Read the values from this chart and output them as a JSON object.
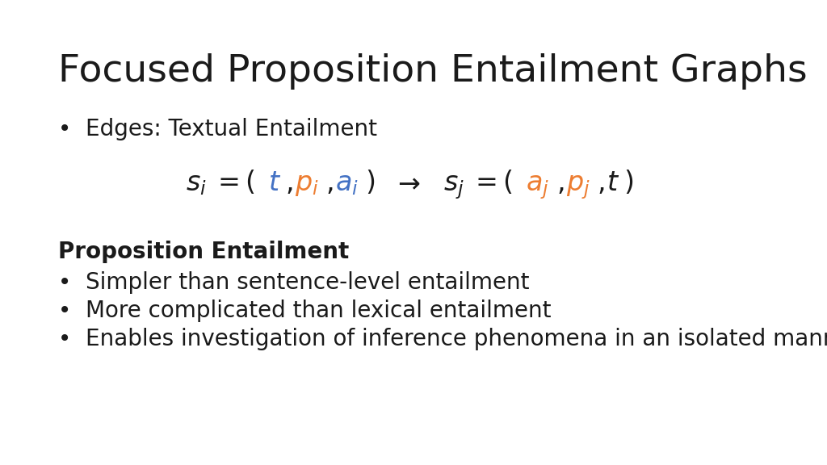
{
  "title": "Focused Proposition Entailment Graphs",
  "title_fontsize": 34,
  "title_color": "#1a1a1a",
  "background_color": "#ffffff",
  "text_color": "#1a1a1a",
  "blue_color": "#4472C4",
  "orange_color": "#ED7D31",
  "bullet1_label": "Edges: Textual Entailment",
  "formula_fontsize": 24,
  "section_header": "Proposition Entailment",
  "section_header_fontsize": 20,
  "body_fontsize": 20,
  "bullets": [
    "Simpler than sentence-level entailment",
    "More complicated than lexical entailment",
    "Enables investigation of inference phenomena in an isolated manner"
  ]
}
